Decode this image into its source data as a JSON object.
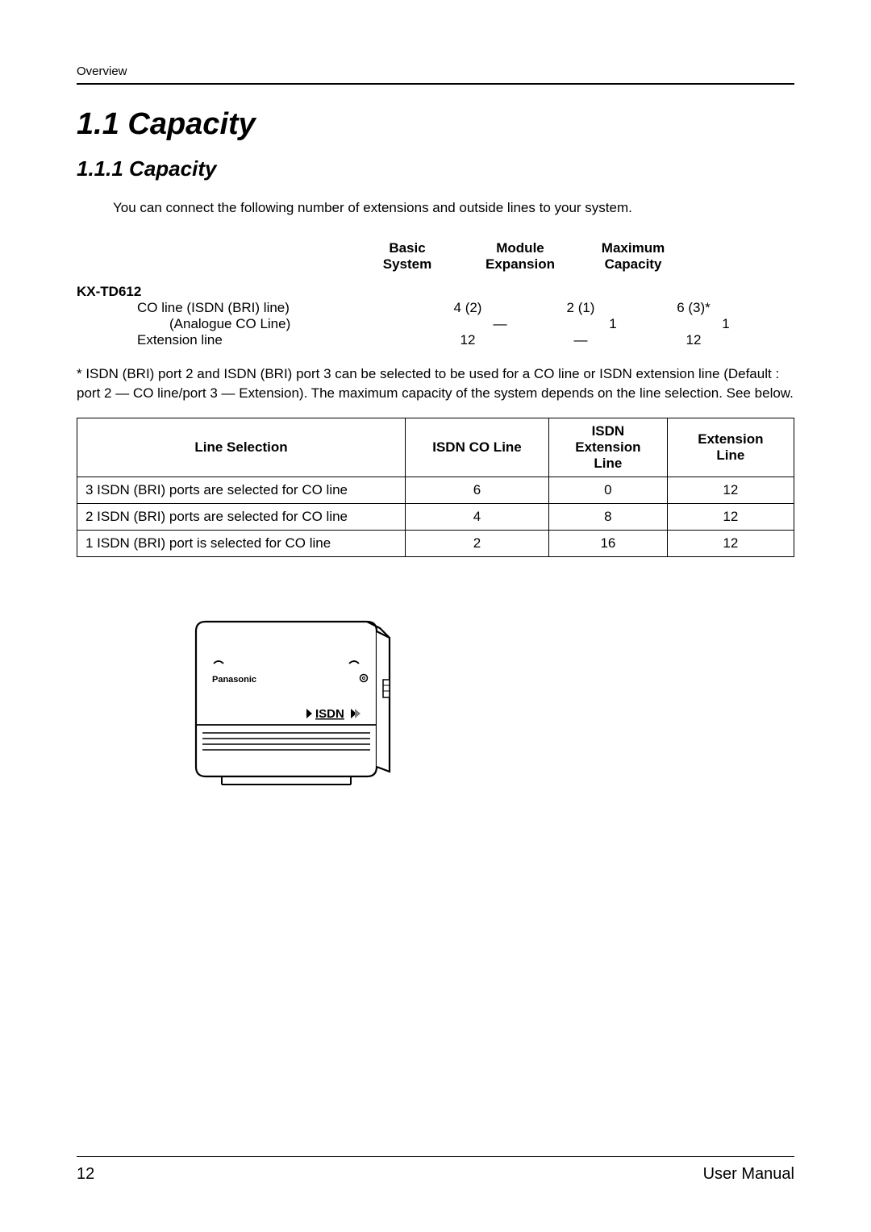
{
  "header": {
    "section": "Overview"
  },
  "titles": {
    "h1": "1.1   Capacity",
    "h2": "1.1.1   Capacity"
  },
  "intro": "You can connect the following number of extensions and outside lines to your system.",
  "capTable": {
    "headers": {
      "basic1": "Basic",
      "basic2": "System",
      "mod1": "Module",
      "mod2": "Expansion",
      "max1": "Maximum",
      "max2": "Capacity"
    },
    "model": "KX-TD612",
    "rows": [
      {
        "label": "CO line (ISDN (BRI) line)",
        "basic": "4 (2)",
        "mod": "2 (1)",
        "max": "6 (3)*",
        "indent": "indent1"
      },
      {
        "label": "(Analogue CO Line)",
        "basic": "—",
        "mod": "1",
        "max": "1",
        "indent": "indent2"
      },
      {
        "label": "Extension line",
        "basic": "12",
        "mod": "—",
        "max": "12",
        "indent": "indent1"
      }
    ]
  },
  "note": "* ISDN (BRI) port 2 and ISDN (BRI) port 3 can be selected to be used for a CO line or ISDN extension line (Default : port 2 — CO line/port 3 — Extension). The maximum capacity of the system depends on the line selection. See below.",
  "lineSel": {
    "headers": {
      "c0": "Line Selection",
      "c1": "ISDN CO Line",
      "c2a": "ISDN",
      "c2b": "Extension",
      "c2c": "Line",
      "c3a": "Extension",
      "c3b": "Line"
    },
    "rows": [
      {
        "label": "3 ISDN (BRI) ports are selected for CO line",
        "co": "6",
        "isdnExt": "0",
        "ext": "12"
      },
      {
        "label": "2 ISDN (BRI) ports are selected for CO line",
        "co": "4",
        "isdnExt": "8",
        "ext": "12"
      },
      {
        "label": "1 ISDN (BRI) port is selected for CO line",
        "co": "2",
        "isdnExt": "16",
        "ext": "12"
      }
    ]
  },
  "device": {
    "brand": "Panasonic",
    "badge": "ISDN"
  },
  "footer": {
    "page": "12",
    "title": "User Manual"
  },
  "style": {
    "colors": {
      "text": "#000000",
      "bg": "#ffffff",
      "rule": "#000000"
    }
  }
}
